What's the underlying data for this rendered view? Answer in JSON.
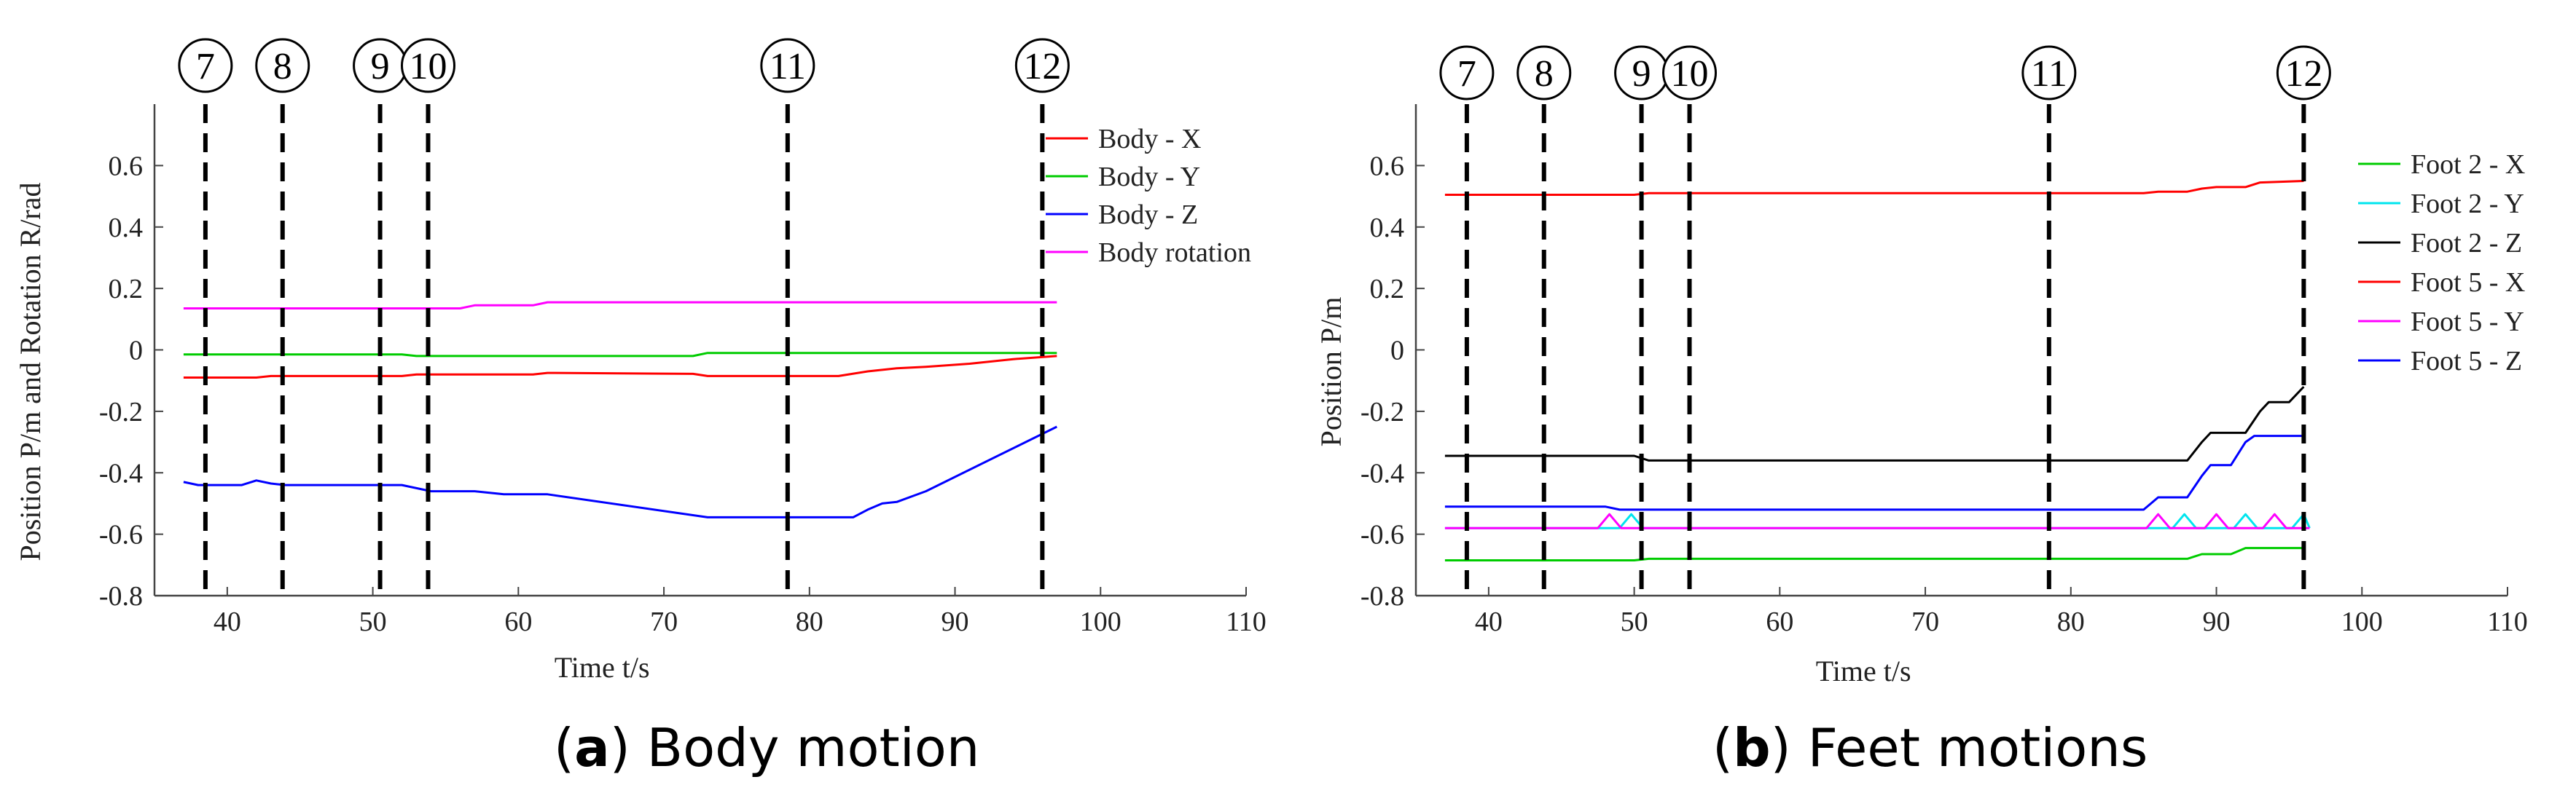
{
  "captions": [
    {
      "letter": "a",
      "text": "Body motion"
    },
    {
      "letter": "b",
      "text": "Feet motions"
    }
  ],
  "chart_data": [
    {
      "type": "line",
      "id": "body",
      "title": "",
      "xlabel": "Time t/s",
      "ylabel": "Position P/m and Rotation R/rad",
      "xlim": [
        35,
        110
      ],
      "ylim": [
        -0.8,
        0.8
      ],
      "xticks": [
        40,
        50,
        60,
        70,
        80,
        90,
        100,
        110
      ],
      "yticks": [
        -0.8,
        -0.6,
        -0.4,
        -0.2,
        0,
        0.2,
        0.4,
        0.6
      ],
      "ytick_labels": [
        "-0.8",
        "-0.6",
        "-0.4",
        "-0.2",
        "0",
        "0.2",
        "0.4",
        "0.6"
      ],
      "grid": false,
      "legend_position": "top-right",
      "markers": [
        {
          "label": "7",
          "x": 38.5
        },
        {
          "label": "8",
          "x": 43.8
        },
        {
          "label": "9",
          "x": 50.5
        },
        {
          "label": "10",
          "x": 53.8
        },
        {
          "label": "11",
          "x": 78.5
        },
        {
          "label": "12",
          "x": 96.0
        }
      ],
      "series": [
        {
          "name": "Body - X",
          "color": "#ff0000",
          "points": [
            [
              37,
              -0.09
            ],
            [
              42,
              -0.09
            ],
            [
              43,
              -0.085
            ],
            [
              52,
              -0.085
            ],
            [
              53,
              -0.08
            ],
            [
              61,
              -0.08
            ],
            [
              62,
              -0.075
            ],
            [
              72,
              -0.078
            ],
            [
              73,
              -0.085
            ],
            [
              82,
              -0.085
            ],
            [
              84,
              -0.07
            ],
            [
              86,
              -0.06
            ],
            [
              88,
              -0.055
            ],
            [
              91,
              -0.045
            ],
            [
              94,
              -0.03
            ],
            [
              97,
              -0.02
            ]
          ]
        },
        {
          "name": "Body - Y",
          "color": "#00cc00",
          "points": [
            [
              37,
              -0.015
            ],
            [
              52,
              -0.015
            ],
            [
              53,
              -0.02
            ],
            [
              72,
              -0.02
            ],
            [
              73,
              -0.01
            ],
            [
              97,
              -0.01
            ]
          ]
        },
        {
          "name": "Body - Z",
          "color": "#0000ff",
          "points": [
            [
              37,
              -0.43
            ],
            [
              38,
              -0.44
            ],
            [
              41,
              -0.44
            ],
            [
              42,
              -0.425
            ],
            [
              43,
              -0.435
            ],
            [
              44,
              -0.44
            ],
            [
              52,
              -0.44
            ],
            [
              54,
              -0.46
            ],
            [
              57,
              -0.46
            ],
            [
              59,
              -0.47
            ],
            [
              62,
              -0.47
            ],
            [
              73,
              -0.545
            ],
            [
              83,
              -0.545
            ],
            [
              84,
              -0.52
            ],
            [
              85,
              -0.5
            ],
            [
              86,
              -0.495
            ],
            [
              88,
              -0.46
            ],
            [
              97,
              -0.25
            ]
          ]
        },
        {
          "name": "Body rotation",
          "color": "#ff00ff",
          "points": [
            [
              37,
              0.135
            ],
            [
              56,
              0.135
            ],
            [
              57,
              0.145
            ],
            [
              61,
              0.145
            ],
            [
              62,
              0.155
            ],
            [
              97,
              0.155
            ]
          ]
        }
      ]
    },
    {
      "type": "line",
      "id": "feet",
      "title": "",
      "xlabel": "Time t/s",
      "ylabel": "Position P/m",
      "xlim": [
        35,
        110
      ],
      "ylim": [
        -0.8,
        0.8
      ],
      "xticks": [
        40,
        50,
        60,
        70,
        80,
        90,
        100,
        110
      ],
      "yticks": [
        -0.8,
        -0.6,
        -0.4,
        -0.2,
        0,
        0.2,
        0.4,
        0.6
      ],
      "ytick_labels": [
        "-0.8",
        "-0.6",
        "-0.4",
        "-0.2",
        "0",
        "0.2",
        "0.4",
        "0.6"
      ],
      "grid": false,
      "legend_position": "top-right",
      "markers": [
        {
          "label": "7",
          "x": 38.5
        },
        {
          "label": "8",
          "x": 43.8
        },
        {
          "label": "9",
          "x": 50.5
        },
        {
          "label": "10",
          "x": 53.8
        },
        {
          "label": "11",
          "x": 78.5
        },
        {
          "label": "12",
          "x": 96.0
        }
      ],
      "series": [
        {
          "name": "Foot 2 - X",
          "color": "#00cc00",
          "points": [
            [
              37,
              -0.685
            ],
            [
              50,
              -0.685
            ],
            [
              51,
              -0.68
            ],
            [
              88,
              -0.68
            ],
            [
              89,
              -0.665
            ],
            [
              91,
              -0.665
            ],
            [
              92,
              -0.645
            ],
            [
              96,
              -0.645
            ]
          ]
        },
        {
          "name": "Foot 2 - Y",
          "color": "#00e5ee",
          "points": [
            [
              37,
              -0.58
            ],
            [
              49,
              -0.58
            ],
            [
              49.8,
              -0.535
            ],
            [
              50.6,
              -0.58
            ],
            [
              87,
              -0.58
            ],
            [
              87.8,
              -0.535
            ],
            [
              88.6,
              -0.58
            ],
            [
              91.2,
              -0.58
            ],
            [
              92,
              -0.535
            ],
            [
              92.8,
              -0.58
            ],
            [
              95.2,
              -0.58
            ],
            [
              96,
              -0.535
            ],
            [
              96.4,
              -0.58
            ]
          ]
        },
        {
          "name": "Foot 2 - Z",
          "color": "#000000",
          "points": [
            [
              37,
              -0.345
            ],
            [
              50,
              -0.345
            ],
            [
              51,
              -0.36
            ],
            [
              88,
              -0.36
            ],
            [
              89,
              -0.3
            ],
            [
              89.6,
              -0.27
            ],
            [
              92,
              -0.27
            ],
            [
              93,
              -0.2
            ],
            [
              93.6,
              -0.17
            ],
            [
              95,
              -0.17
            ],
            [
              96,
              -0.12
            ]
          ]
        },
        {
          "name": "Foot 5 - X",
          "color": "#ff0000",
          "points": [
            [
              37,
              0.505
            ],
            [
              50,
              0.505
            ],
            [
              51,
              0.51
            ],
            [
              85,
              0.51
            ],
            [
              86,
              0.515
            ],
            [
              88,
              0.515
            ],
            [
              89,
              0.525
            ],
            [
              90,
              0.53
            ],
            [
              92,
              0.53
            ],
            [
              93,
              0.545
            ],
            [
              96,
              0.55
            ]
          ]
        },
        {
          "name": "Foot 5 - Y",
          "color": "#ff00ff",
          "points": [
            [
              37,
              -0.58
            ],
            [
              47.5,
              -0.58
            ],
            [
              48.3,
              -0.535
            ],
            [
              49.1,
              -0.58
            ],
            [
              85.2,
              -0.58
            ],
            [
              86,
              -0.535
            ],
            [
              86.8,
              -0.58
            ],
            [
              89.2,
              -0.58
            ],
            [
              90,
              -0.535
            ],
            [
              90.8,
              -0.58
            ],
            [
              93.2,
              -0.58
            ],
            [
              94,
              -0.535
            ],
            [
              94.8,
              -0.58
            ],
            [
              96.4,
              -0.58
            ]
          ]
        },
        {
          "name": "Foot 5 - Z",
          "color": "#0000ff",
          "points": [
            [
              37,
              -0.51
            ],
            [
              48,
              -0.51
            ],
            [
              49,
              -0.52
            ],
            [
              85,
              -0.52
            ],
            [
              86,
              -0.48
            ],
            [
              88,
              -0.48
            ],
            [
              89,
              -0.41
            ],
            [
              89.6,
              -0.375
            ],
            [
              91,
              -0.375
            ],
            [
              92,
              -0.3
            ],
            [
              92.6,
              -0.28
            ],
            [
              96,
              -0.28
            ]
          ]
        }
      ]
    }
  ]
}
